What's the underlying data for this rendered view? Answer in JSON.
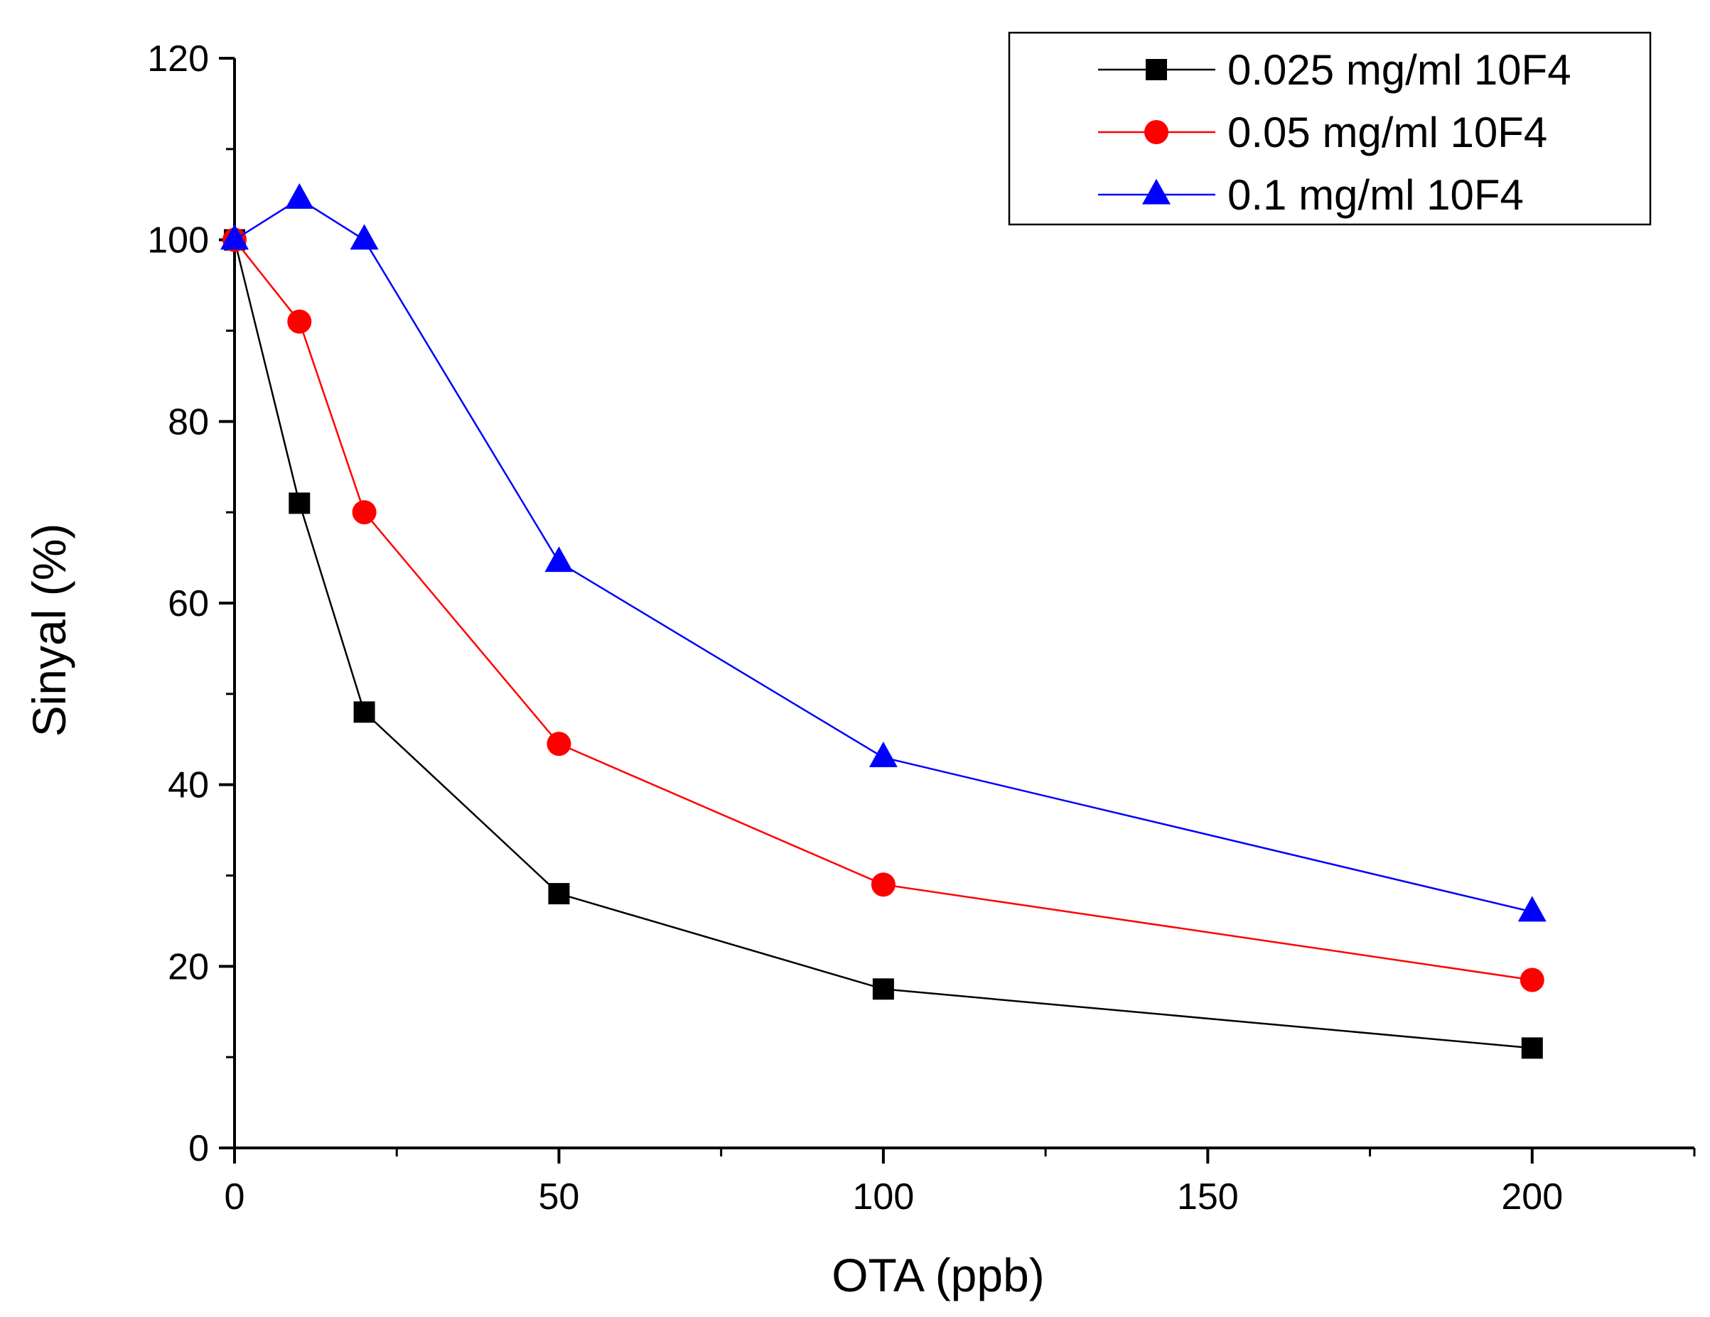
{
  "chart_data": {
    "type": "line",
    "title": "",
    "xlabel": "OTA (ppb)",
    "ylabel": "Sinyal (%)",
    "xlim": [
      0,
      225
    ],
    "ylim": [
      0,
      120
    ],
    "x_ticks": [
      0,
      50,
      100,
      150,
      200
    ],
    "x_tick_labels": [
      "0",
      "50",
      "100",
      "150",
      "200"
    ],
    "x_minor_ticks": [
      25,
      75,
      125,
      175,
      225
    ],
    "y_ticks": [
      0,
      20,
      40,
      60,
      80,
      100,
      120
    ],
    "y_tick_labels": [
      "0",
      "20",
      "40",
      "60",
      "80",
      "100",
      "120"
    ],
    "y_minor_ticks": [
      10,
      30,
      50,
      70,
      90,
      110
    ],
    "grid": false,
    "legend_position": "top-right",
    "x": [
      0,
      10,
      20,
      50,
      100,
      200
    ],
    "series": [
      {
        "name": "0.025 mg/ml 10F4",
        "color": "#000000",
        "marker": "square",
        "values": [
          100,
          71,
          48,
          28,
          17.5,
          11
        ]
      },
      {
        "name": "0.05 mg/ml 10F4",
        "color": "#ff0000",
        "marker": "circle",
        "values": [
          100,
          91,
          70,
          44.5,
          29,
          18.5
        ]
      },
      {
        "name": "0.1 mg/ml 10F4",
        "color": "#0000ff",
        "marker": "triangle",
        "values": [
          100,
          104.5,
          100,
          64.5,
          43,
          26
        ]
      }
    ]
  }
}
